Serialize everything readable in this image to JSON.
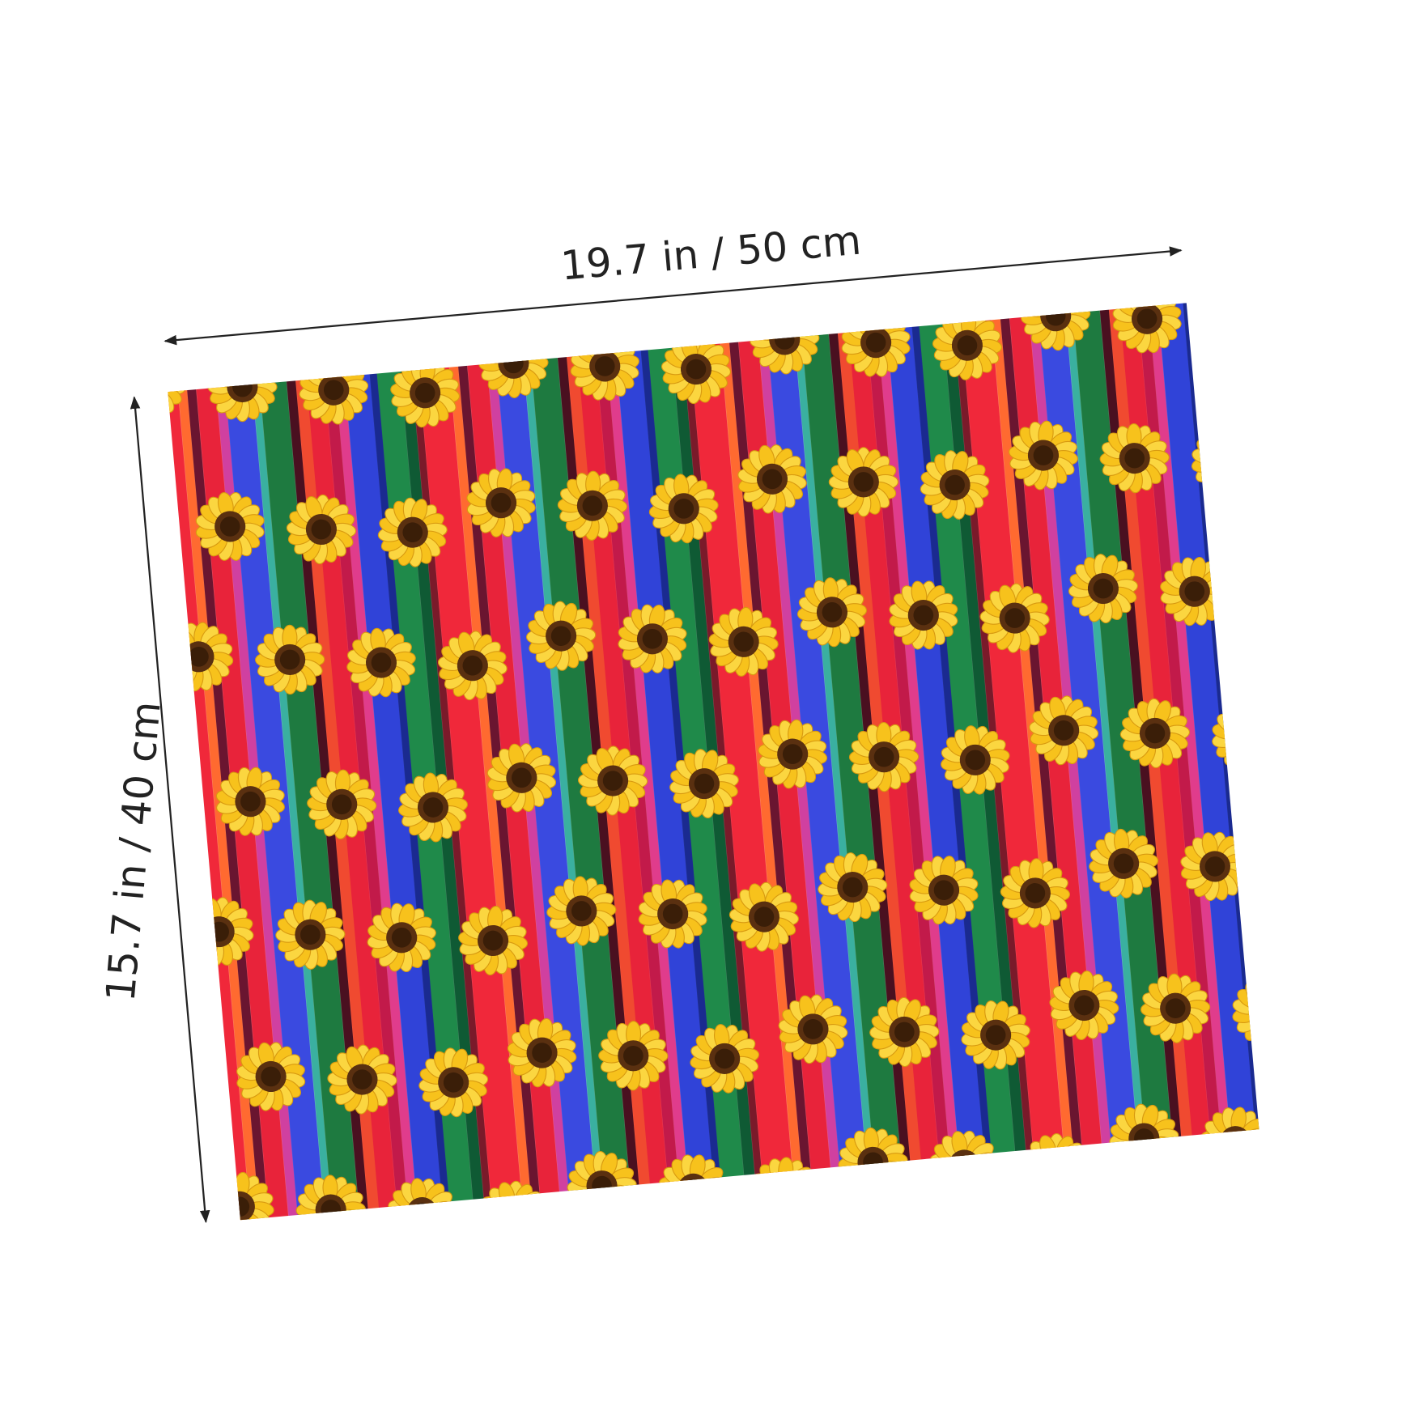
{
  "dimensions": {
    "width_label": "19.7 in / 50 cm",
    "height_label": "15.7 in / 40 cm"
  }
}
